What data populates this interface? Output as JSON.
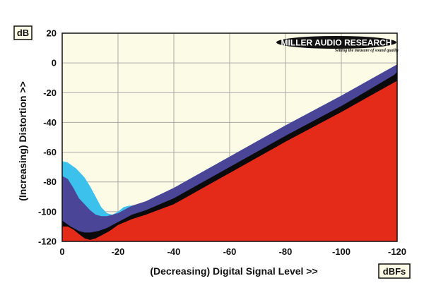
{
  "chart_data": {
    "type": "area",
    "x_direction": "decreasing",
    "xlabel": "(Decreasing) Digital Signal Level >>",
    "ylabel": "(Increasing) Distortion >>",
    "x_unit": "dBFs",
    "y_unit": "dB",
    "xlim": [
      0,
      -120
    ],
    "ylim": [
      -120,
      20
    ],
    "x_ticks": [
      0,
      -20,
      -40,
      -60,
      -80,
      -100,
      -120
    ],
    "y_ticks": [
      20,
      0,
      -20,
      -40,
      -60,
      -80,
      -100,
      -120
    ],
    "grid": true,
    "colors": {
      "plot_background": "#fcfbe6",
      "grid": "#a8a8a8",
      "frame": "#111111"
    },
    "series": [
      {
        "color": "#3bc1ec",
        "x": [
          0,
          -2,
          -5,
          -8,
          -10,
          -12,
          -14,
          -16,
          -18,
          -20,
          -22,
          -24,
          -26,
          -30,
          -40,
          -60,
          -80,
          -100,
          -120
        ],
        "y": [
          -66,
          -67,
          -71,
          -77,
          -83,
          -90,
          -97,
          -101,
          -102,
          -100,
          -97,
          -96,
          -96,
          -93,
          -84,
          -63,
          -42,
          -22,
          -1
        ]
      },
      {
        "color": "#4a4596",
        "x": [
          0,
          -2,
          -4,
          -6,
          -8,
          -10,
          -12,
          -14,
          -16,
          -20,
          -25,
          -30,
          -40,
          -60,
          -80,
          -100,
          -120
        ],
        "y": [
          -76,
          -78,
          -84,
          -91,
          -95,
          -99,
          -102,
          -103,
          -103,
          -101,
          -96,
          -93,
          -84,
          -63,
          -42,
          -22,
          -1
        ]
      },
      {
        "color": "#0a0a0a",
        "x": [
          0,
          -3,
          -6,
          -8,
          -10,
          -13,
          -16,
          -20,
          -25,
          -30,
          -40,
          -60,
          -80,
          -100,
          -119,
          -120
        ],
        "y": [
          -106,
          -110,
          -113,
          -114,
          -114,
          -113,
          -111,
          -107,
          -102,
          -99,
          -91,
          -70,
          -49,
          -29,
          -8,
          -6
        ]
      },
      {
        "color": "#e42b1a",
        "x": [
          0,
          -2,
          -4,
          -6,
          -8,
          -10,
          -12,
          -14,
          -17,
          -20,
          -25,
          -30,
          -40,
          -60,
          -80,
          -100,
          -120
        ],
        "y": [
          -110,
          -110,
          -112,
          -115,
          -118,
          -119,
          -118,
          -116,
          -113,
          -109,
          -105,
          -102,
          -95,
          -74,
          -53,
          -33,
          -12
        ]
      }
    ],
    "logo": {
      "brand": "MILLER AUDIO RESEARCH",
      "tagline": "Setting the measure of sound quality"
    }
  }
}
